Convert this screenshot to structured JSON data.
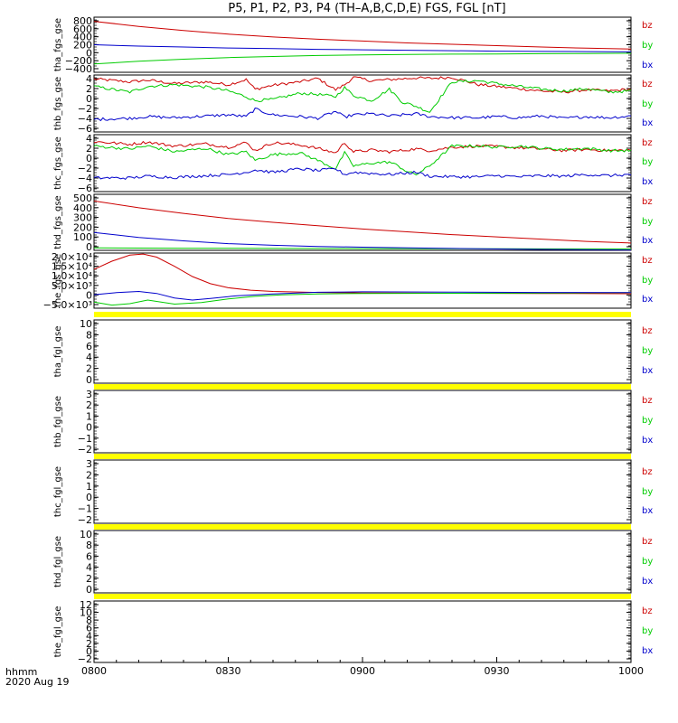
{
  "chart_data": {
    "type": "line",
    "title": "P5, P1, P2, P3, P4 (TH–A,B,C,D,E) FGS, FGL [nT]",
    "time_label": "hhmm",
    "date_label": "2020 Aug 19",
    "x_ticks": [
      "0800",
      "0830",
      "0900",
      "0930",
      "1000"
    ],
    "x_range": [
      "08:00",
      "10:00"
    ],
    "colors": {
      "bz": "#cc0000",
      "by": "#00cc00",
      "bx": "#0000cc",
      "gap_bar": "#ffff00"
    },
    "legend_labels": [
      "bz",
      "by",
      "bx"
    ],
    "panels": [
      {
        "ylabel": "tha_fgs_gse",
        "ylim": [
          -400,
          800
        ],
        "y_ticks": [
          "800",
          "600",
          "400",
          "200",
          "0",
          "−200",
          "−400"
        ],
        "gap_bar": false,
        "series": [
          {
            "name": "bz",
            "x": [
              0,
              10,
              20,
              30,
              40,
              50,
              60,
              70,
              80,
              90,
              100,
              110,
              120
            ],
            "y": [
              710,
              600,
              510,
              430,
              370,
              320,
              280,
              240,
              210,
              180,
              150,
              125,
              105
            ]
          },
          {
            "name": "by",
            "x": [
              0,
              10,
              20,
              30,
              40,
              50,
              60,
              70,
              80,
              90,
              100,
              110,
              120
            ],
            "y": [
              -220,
              -160,
              -115,
              -80,
              -55,
              -35,
              -20,
              -10,
              -5,
              0,
              5,
              10,
              15
            ]
          },
          {
            "name": "bx",
            "x": [
              0,
              10,
              20,
              30,
              40,
              50,
              60,
              70,
              80,
              90,
              100,
              110,
              120
            ],
            "y": [
              200,
              170,
              150,
              130,
              115,
              100,
              90,
              80,
              70,
              60,
              55,
              50,
              45
            ]
          }
        ]
      },
      {
        "ylabel": "thb_fgs_gse",
        "ylim": [
          -6,
          4
        ],
        "y_ticks": [
          "4",
          "2",
          "0",
          "−2",
          "−4",
          "−6"
        ],
        "gap_bar": false,
        "series": [
          {
            "name": "bz",
            "x": [
              0,
              8,
              12,
              18,
              25,
              30,
              34,
              36,
              40,
              46,
              50,
              54,
              56,
              58,
              62,
              66,
              72,
              75,
              80,
              86,
              90,
              95,
              100,
              105,
              110,
              115,
              120
            ],
            "y": [
              3.3,
              2.8,
              3.1,
              2.5,
              2.8,
              2.3,
              3.2,
              1.5,
              2.2,
              2.8,
              3.4,
              1.4,
              2.3,
              3.6,
              3.0,
              3.2,
              3.5,
              3.4,
              3.6,
              2.3,
              2.0,
              1.6,
              1.2,
              1.0,
              1.4,
              1.2,
              1.5
            ]
          },
          {
            "name": "by",
            "x": [
              0,
              8,
              12,
              18,
              25,
              30,
              34,
              36,
              40,
              46,
              50,
              54,
              56,
              58,
              62,
              66,
              69,
              70,
              72,
              75,
              80,
              86,
              90,
              95,
              100,
              105,
              110,
              115,
              120
            ],
            "y": [
              2.0,
              1.0,
              2.0,
              2.3,
              1.9,
              1.2,
              0.2,
              -0.5,
              -0.3,
              0.8,
              0.6,
              0.2,
              1.8,
              0.4,
              -0.5,
              1.5,
              -0.8,
              -1.0,
              -1.5,
              -2.5,
              2.8,
              3.0,
              2.5,
              2.0,
              1.5,
              1.2,
              1.6,
              1.0,
              1.2
            ]
          },
          {
            "name": "bx",
            "x": [
              0,
              8,
              12,
              18,
              25,
              30,
              34,
              36,
              40,
              46,
              50,
              54,
              56,
              58,
              62,
              66,
              72,
              75,
              80,
              86,
              90,
              95,
              100,
              105,
              110,
              115,
              120
            ],
            "y": [
              -3.8,
              -3.6,
              -3.3,
              -3.5,
              -3.2,
              -3.0,
              -3.3,
              -2.0,
              -3.0,
              -3.3,
              -3.6,
              -2.4,
              -3.4,
              -3.0,
              -2.8,
              -3.2,
              -2.8,
              -3.3,
              -3.5,
              -3.5,
              -3.3,
              -3.5,
              -3.2,
              -3.6,
              -3.3,
              -3.5,
              -3.2
            ]
          }
        ]
      },
      {
        "ylabel": "thc_fgs_gse",
        "ylim": [
          -6,
          4
        ],
        "y_ticks": [
          "4",
          "2",
          "0",
          "−2",
          "−4",
          "−6"
        ],
        "gap_bar": false,
        "series": [
          {
            "name": "bz",
            "x": [
              0,
              8,
              12,
              18,
              25,
              30,
              34,
              36,
              40,
              46,
              50,
              54,
              56,
              58,
              62,
              66,
              72,
              75,
              80,
              86,
              90,
              95,
              100,
              105,
              110,
              115,
              120
            ],
            "y": [
              2.8,
              2.3,
              2.7,
              2.0,
              2.4,
              1.8,
              2.6,
              1.2,
              2.6,
              2.2,
              1.6,
              0.8,
              2.6,
              1.0,
              1.3,
              1.0,
              1.5,
              1.2,
              1.8,
              2.0,
              1.9,
              1.7,
              1.5,
              1.2,
              1.4,
              1.2,
              1.3
            ]
          },
          {
            "name": "by",
            "x": [
              0,
              8,
              12,
              18,
              25,
              30,
              34,
              36,
              40,
              46,
              50,
              54,
              56,
              58,
              62,
              66,
              68,
              70,
              72,
              75,
              80,
              86,
              90,
              95,
              100,
              105,
              110,
              115,
              120
            ],
            "y": [
              2.0,
              1.5,
              2.0,
              1.0,
              1.6,
              0.5,
              1.0,
              -0.5,
              0.5,
              0.8,
              -0.5,
              -2.0,
              0.8,
              -1.5,
              -1.0,
              -0.8,
              -1.5,
              -2.5,
              -3.0,
              -1.5,
              2.0,
              2.0,
              1.8,
              2.0,
              1.6,
              1.4,
              1.6,
              1.2,
              1.2
            ]
          },
          {
            "name": "bx",
            "x": [
              0,
              8,
              12,
              18,
              25,
              30,
              34,
              36,
              40,
              46,
              50,
              54,
              56,
              58,
              62,
              66,
              72,
              75,
              80,
              86,
              90,
              95,
              100,
              105,
              110,
              115,
              120
            ],
            "y": [
              -3.6,
              -3.6,
              -3.3,
              -3.5,
              -3.2,
              -3.0,
              -2.6,
              -2.2,
              -2.6,
              -2.0,
              -2.3,
              -2.0,
              -3.0,
              -2.6,
              -2.8,
              -3.0,
              -2.6,
              -3.3,
              -3.4,
              -3.4,
              -3.2,
              -3.4,
              -3.2,
              -3.3,
              -3.0,
              -3.2,
              -3.0
            ]
          }
        ]
      },
      {
        "ylabel": "thd_fgs_gse",
        "ylim": [
          0,
          500
        ],
        "y_ticks": [
          "500",
          "400",
          "300",
          "200",
          "100",
          "0"
        ],
        "gap_bar": false,
        "series": [
          {
            "name": "bz",
            "x": [
              0,
              10,
              20,
              30,
              40,
              50,
              60,
              70,
              80,
              90,
              100,
              110,
              120
            ],
            "y": [
              440,
              380,
              330,
              285,
              250,
              220,
              190,
              165,
              140,
              120,
              100,
              80,
              65
            ]
          },
          {
            "name": "by",
            "x": [
              0,
              10,
              20,
              30,
              40,
              50,
              60,
              70,
              80,
              90,
              100,
              110,
              120
            ],
            "y": [
              22,
              20,
              18,
              18,
              17,
              16,
              15,
              15,
              14,
              14,
              13,
              13,
              12
            ]
          },
          {
            "name": "bx",
            "x": [
              0,
              10,
              20,
              30,
              40,
              50,
              60,
              70,
              80,
              90,
              100,
              110,
              120
            ],
            "y": [
              160,
              115,
              85,
              60,
              45,
              35,
              28,
              22,
              17,
              12,
              8,
              5,
              3
            ]
          }
        ]
      },
      {
        "ylabel": "the_fgs_gse",
        "ylim": [
          -7000,
          20000
        ],
        "y_ticks": [
          "2.0×10⁴",
          "1.5×10⁴",
          "1.0×10⁴",
          "5.0×10³",
          "0",
          "−5.0×10³"
        ],
        "gap_bar": true,
        "series": [
          {
            "name": "bz",
            "x": [
              0,
              4,
              8,
              11,
              14,
              18,
              22,
              26,
              30,
              35,
              40,
              50,
              60,
              80,
              100,
              120
            ],
            "y": [
              12000,
              16000,
              19000,
              19500,
              18000,
              13500,
              8500,
              5000,
              3000,
              1800,
              1200,
              700,
              500,
              300,
              200,
              100
            ]
          },
          {
            "name": "by",
            "x": [
              0,
              4,
              8,
              12,
              18,
              24,
              30,
              36,
              42,
              50,
              60,
              80,
              100,
              120
            ],
            "y": [
              -4000,
              -5500,
              -4800,
              -3000,
              -5000,
              -4200,
              -2500,
              -1200,
              -500,
              0,
              200,
              300,
              400,
              600
            ]
          },
          {
            "name": "bx",
            "x": [
              0,
              5,
              10,
              14,
              18,
              22,
              26,
              32,
              40,
              50,
              60,
              80,
              100,
              120
            ],
            "y": [
              -400,
              600,
              1200,
              200,
              -2000,
              -3000,
              -2200,
              -900,
              0,
              800,
              1000,
              900,
              700,
              600
            ]
          }
        ]
      },
      {
        "ylabel": "tha_fgl_gse",
        "ylim": [
          -1,
          11
        ],
        "y_ticks": [
          "10",
          "8",
          "6",
          "4",
          "2",
          "0"
        ],
        "gap_bar": true,
        "series": []
      },
      {
        "ylabel": "thb_fgl_gse",
        "ylim": [
          -2.5,
          3.5
        ],
        "y_ticks": [
          "3",
          "2",
          "1",
          "0",
          "−1",
          "−2"
        ],
        "gap_bar": true,
        "series": []
      },
      {
        "ylabel": "thc_fgl_gse",
        "ylim": [
          -2.5,
          3.5
        ],
        "y_ticks": [
          "3",
          "2",
          "1",
          "0",
          "−1",
          "−2"
        ],
        "gap_bar": true,
        "series": []
      },
      {
        "ylabel": "thd_fgl_gse",
        "ylim": [
          -1,
          11
        ],
        "y_ticks": [
          "10",
          "8",
          "6",
          "4",
          "2",
          "0"
        ],
        "gap_bar": true,
        "series": []
      },
      {
        "ylabel": "the_fgl_gse",
        "ylim": [
          -3,
          14
        ],
        "y_ticks": [
          "12",
          "10",
          "8",
          "6",
          "4",
          "2",
          "0",
          "−2"
        ],
        "gap_bar": false,
        "series": []
      }
    ]
  }
}
